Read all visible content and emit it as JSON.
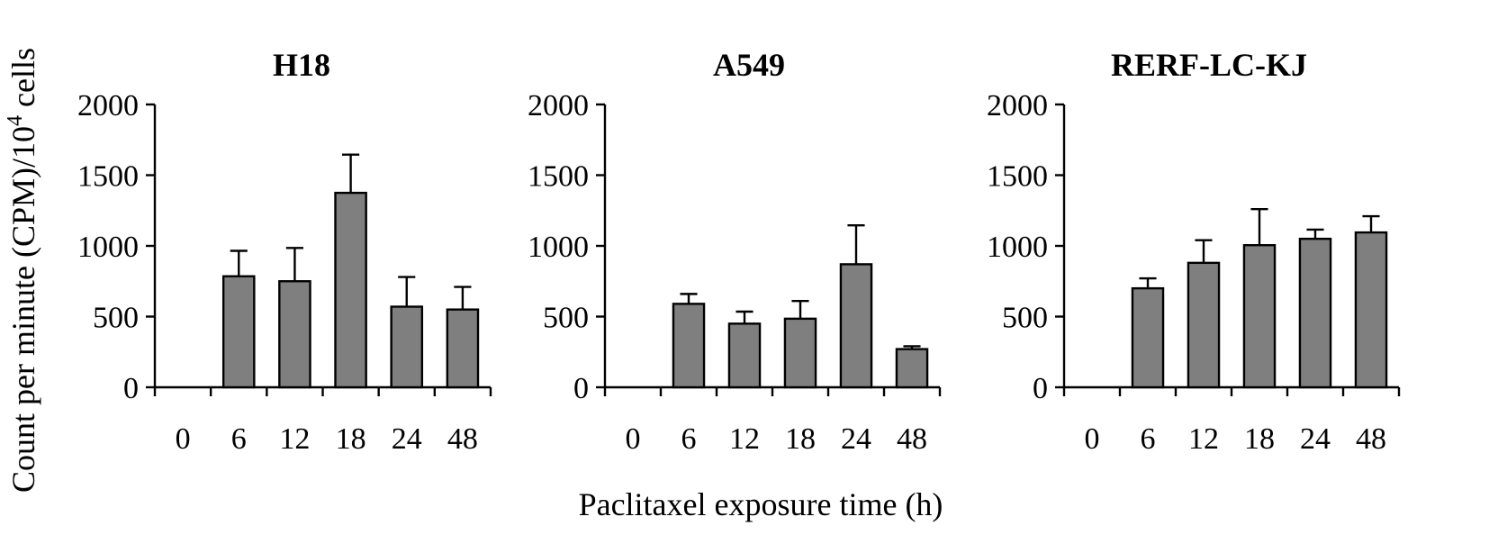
{
  "chart_data": [
    {
      "type": "bar",
      "title": "H18",
      "categories": [
        "0",
        "6",
        "12",
        "18",
        "24",
        "48"
      ],
      "values": [
        0,
        785,
        750,
        1375,
        570,
        550
      ],
      "errors": [
        0,
        180,
        235,
        270,
        210,
        160
      ],
      "ylim": [
        0,
        2000
      ],
      "yticks": [
        "0",
        "500",
        "1000",
        "1500",
        "2000"
      ]
    },
    {
      "type": "bar",
      "title": "A549",
      "categories": [
        "0",
        "6",
        "12",
        "18",
        "24",
        "48"
      ],
      "values": [
        0,
        590,
        450,
        485,
        870,
        270
      ],
      "errors": [
        0,
        70,
        85,
        125,
        275,
        20
      ],
      "ylim": [
        0,
        2000
      ],
      "yticks": [
        "0",
        "500",
        "1000",
        "1500",
        "2000"
      ]
    },
    {
      "type": "bar",
      "title": "RERF-LC-KJ",
      "categories": [
        "0",
        "6",
        "12",
        "18",
        "24",
        "48"
      ],
      "values": [
        0,
        700,
        880,
        1005,
        1050,
        1095
      ],
      "errors": [
        0,
        70,
        160,
        255,
        65,
        115
      ],
      "ylim": [
        0,
        2000
      ],
      "yticks": [
        "0",
        "500",
        "1000",
        "1500",
        "2000"
      ]
    }
  ],
  "ylabel_main": "Count per minute (CPM)/10",
  "ylabel_sup": "4",
  "ylabel_tail": " cells",
  "xlabel": "Paclitaxel exposure time (h)",
  "colors": {
    "bar": "#7f7f7f",
    "axis": "#000000"
  }
}
